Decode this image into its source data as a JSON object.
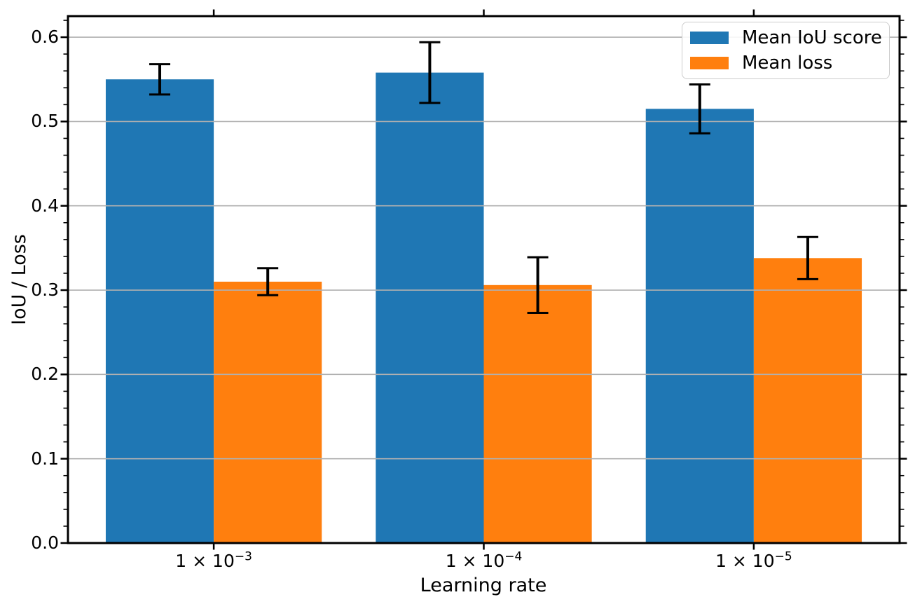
{
  "chart_data": {
    "type": "bar",
    "xlabel": "Learning rate",
    "ylabel": "IoU / Loss",
    "categories": [
      {
        "base": "1 × 10",
        "exp": "−3"
      },
      {
        "base": "1 × 10",
        "exp": "−4"
      },
      {
        "base": "1 × 10",
        "exp": "−5"
      }
    ],
    "series": [
      {
        "name": "Mean IoU score",
        "color": "#1f77b4",
        "values": [
          0.55,
          0.558,
          0.515
        ],
        "errors": [
          0.018,
          0.036,
          0.029
        ]
      },
      {
        "name": "Mean loss",
        "color": "#ff7f0e",
        "values": [
          0.31,
          0.306,
          0.338
        ],
        "errors": [
          0.016,
          0.033,
          0.025
        ]
      }
    ],
    "ylim": [
      0,
      0.625
    ],
    "yticks": [
      0.0,
      0.1,
      0.2,
      0.3,
      0.4,
      0.5,
      0.6
    ],
    "ytick_minor_step": 0.02,
    "grid": true,
    "grid_color": "#b0b0b0",
    "error_bar_color": "#000000",
    "axis_color": "#000000",
    "legend_position": "upper right"
  }
}
